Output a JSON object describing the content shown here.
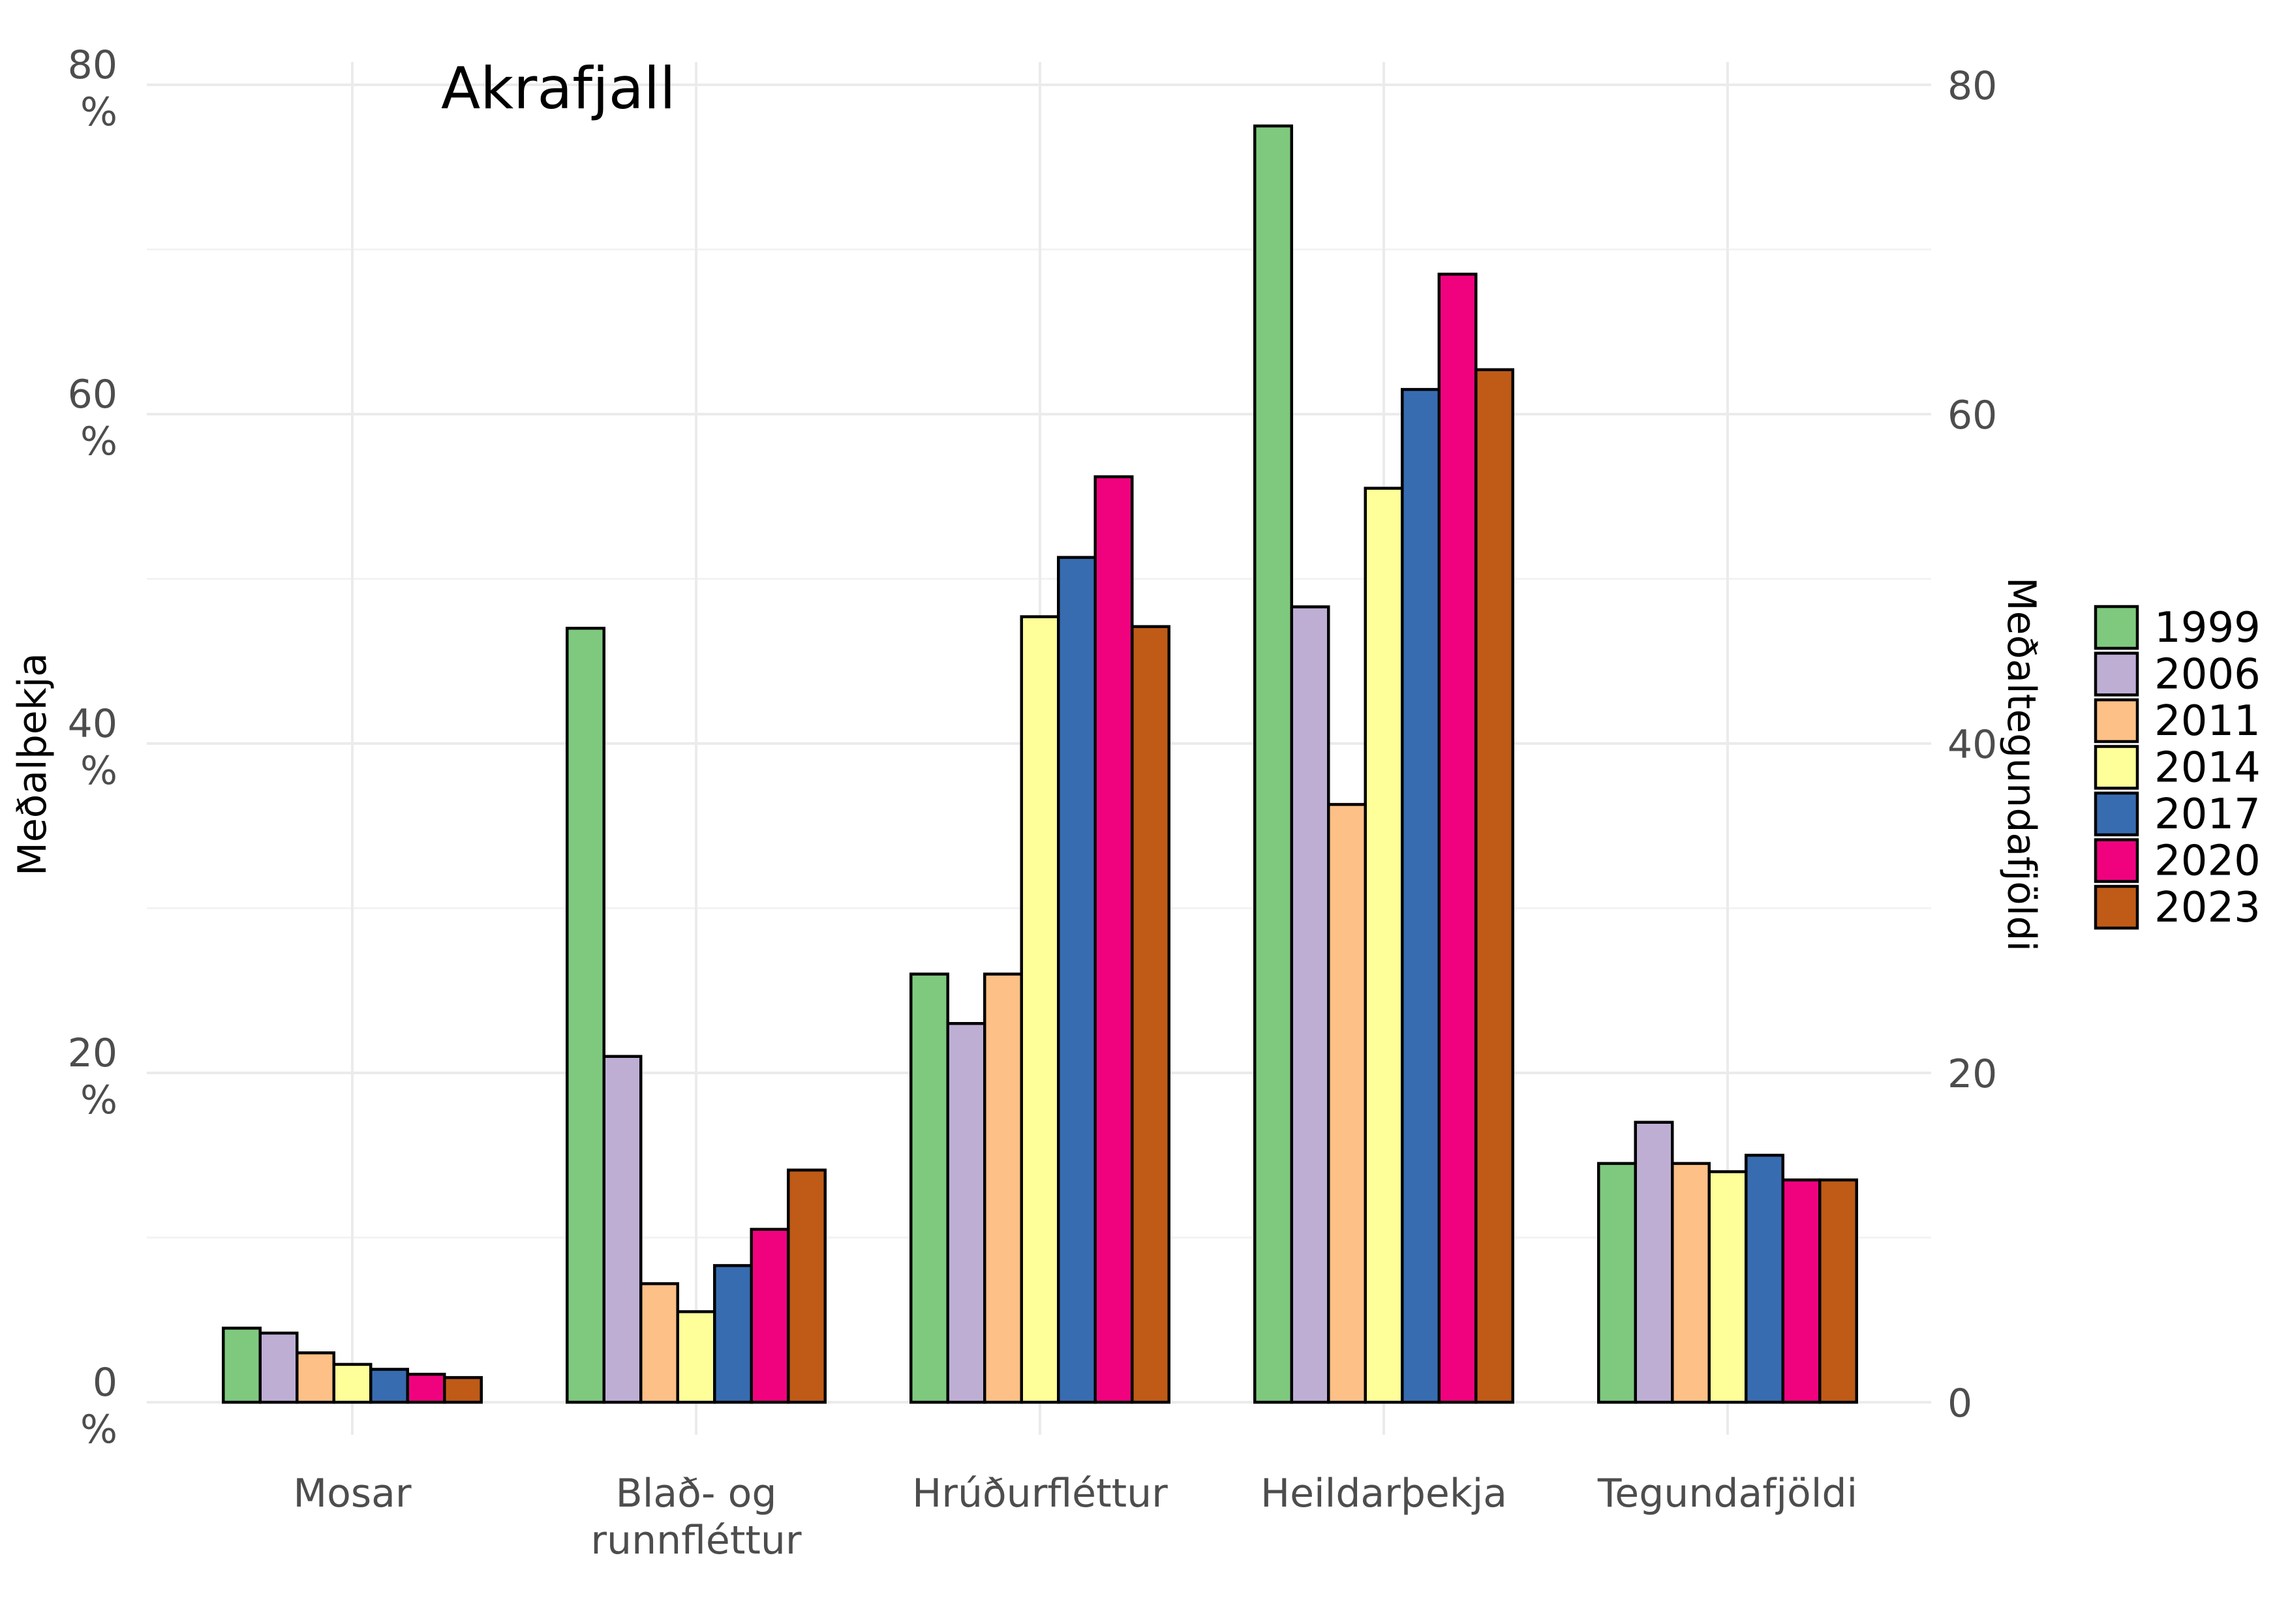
{
  "chart_data": {
    "type": "bar",
    "title": "Akrafjall",
    "ylabel": "Meðalþekja",
    "y2label": "Meðaltegundafjöldi",
    "xlabel": "",
    "categories": [
      "Mosar",
      "Blað- og runnfléttur",
      "Hrúðurfléttur",
      "Heildarþekja",
      "Tegundafjöldi"
    ],
    "category_lines": [
      [
        "Mosar"
      ],
      [
        "Blað- og",
        "runnfléttur"
      ],
      [
        "Hrúðurfléttur"
      ],
      [
        "Heildarþekja"
      ],
      [
        "Tegundafjöldi"
      ]
    ],
    "ylim": [
      0,
      80
    ],
    "y_ticks": [
      0,
      20,
      40,
      60,
      80
    ],
    "y_tick_labels": [
      [
        "0",
        "%"
      ],
      [
        "20",
        "%"
      ],
      [
        "40",
        "%"
      ],
      [
        "60",
        "%"
      ],
      [
        "80",
        "%"
      ]
    ],
    "y2lim": [
      0,
      80
    ],
    "y2_ticks": [
      0,
      20,
      40,
      60,
      80
    ],
    "y2_tick_labels": [
      "0",
      "20",
      "40",
      "60",
      "80"
    ],
    "grid": true,
    "legend_position": "right",
    "series": [
      {
        "name": "1999",
        "color": "#7fc97f",
        "values": [
          4.5,
          47,
          26,
          77.5,
          14.5
        ]
      },
      {
        "name": "2006",
        "color": "#beaed4",
        "values": [
          4.2,
          21,
          23,
          48.3,
          17
        ]
      },
      {
        "name": "2011",
        "color": "#fdc086",
        "values": [
          3,
          7.2,
          26,
          36.3,
          14.5
        ]
      },
      {
        "name": "2014",
        "color": "#ffff99",
        "values": [
          2.3,
          5.5,
          47.7,
          55.5,
          14
        ]
      },
      {
        "name": "2017",
        "color": "#386cb0",
        "values": [
          2,
          8.3,
          51.3,
          61.5,
          15
        ]
      },
      {
        "name": "2020",
        "color": "#f0027f",
        "values": [
          1.7,
          10.5,
          56.2,
          68.5,
          13.5
        ]
      },
      {
        "name": "2023",
        "color": "#bf5b17",
        "values": [
          1.5,
          14.1,
          47.1,
          62.7,
          13.5
        ]
      }
    ]
  }
}
